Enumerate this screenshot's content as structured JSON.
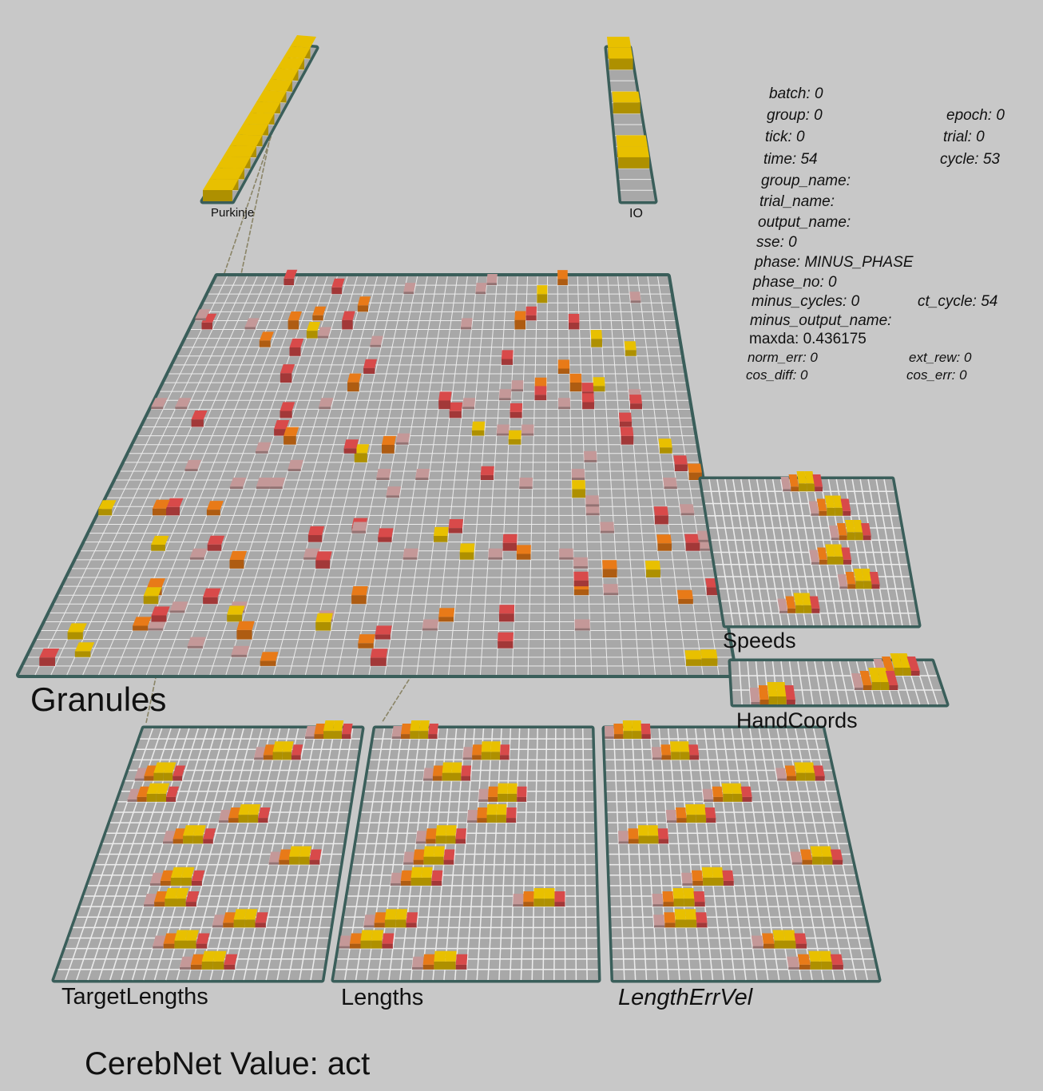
{
  "network": {
    "title_prefix": "CerebNet",
    "title_label": "Value:",
    "title_value": "act",
    "title_text": "CerebNet Value: act"
  },
  "layers": {
    "purkinje": "Purkinje",
    "io": "IO",
    "granules": "Granules",
    "speeds": "Speeds",
    "hand_coords": "HandCoords",
    "target_lengths": "TargetLengths",
    "lengths": "Lengths",
    "length_err_vel": "LengthErrVel"
  },
  "counters": {
    "batch": "batch: 0",
    "group": "group: 0",
    "epoch": "epoch: 0",
    "tick": "tick: 0",
    "trial": "trial: 0",
    "time": "time: 54",
    "cycle": "cycle: 53",
    "group_name": "group_name:",
    "trial_name": "trial_name:",
    "output_name": "output_name:",
    "sse": "sse: 0",
    "phase": "phase: MINUS_PHASE",
    "phase_no": "phase_no: 0",
    "minus_cycles": "minus_cycles: 0",
    "ct_cycle": "ct_cycle: 54",
    "minus_output_name": "minus_output_name:",
    "maxda": "maxda: 0.436175",
    "norm_err": "norm_err: 0",
    "ext_rew": "ext_rew: 0",
    "cos_diff": "cos_diff: 0",
    "cos_err": "cos_err: 0"
  },
  "colors": {
    "background": "#c8c8c8",
    "layer_border": "#3a5e5a",
    "grid_cell": "#a8a8a8",
    "grid_line": "#ececec",
    "unit_high": "#e8c000",
    "unit_mid": "#e87a18",
    "unit_low": "#d84a4a",
    "unit_faint": "#c49898"
  },
  "layer_sizes": {
    "granules": {
      "cols": 45,
      "rows": 45
    },
    "purkinje": {
      "cols": 1,
      "rows": 14
    },
    "io": {
      "cols": 1,
      "rows": 14
    },
    "speeds": {
      "cols": 24,
      "rows": 12
    },
    "hand_coords": {
      "cols": 24,
      "rows": 3
    },
    "target_lengths": {
      "cols": 24,
      "rows": 24
    },
    "lengths": {
      "cols": 24,
      "rows": 24
    },
    "length_err_vel": {
      "cols": 24,
      "rows": 24
    }
  }
}
